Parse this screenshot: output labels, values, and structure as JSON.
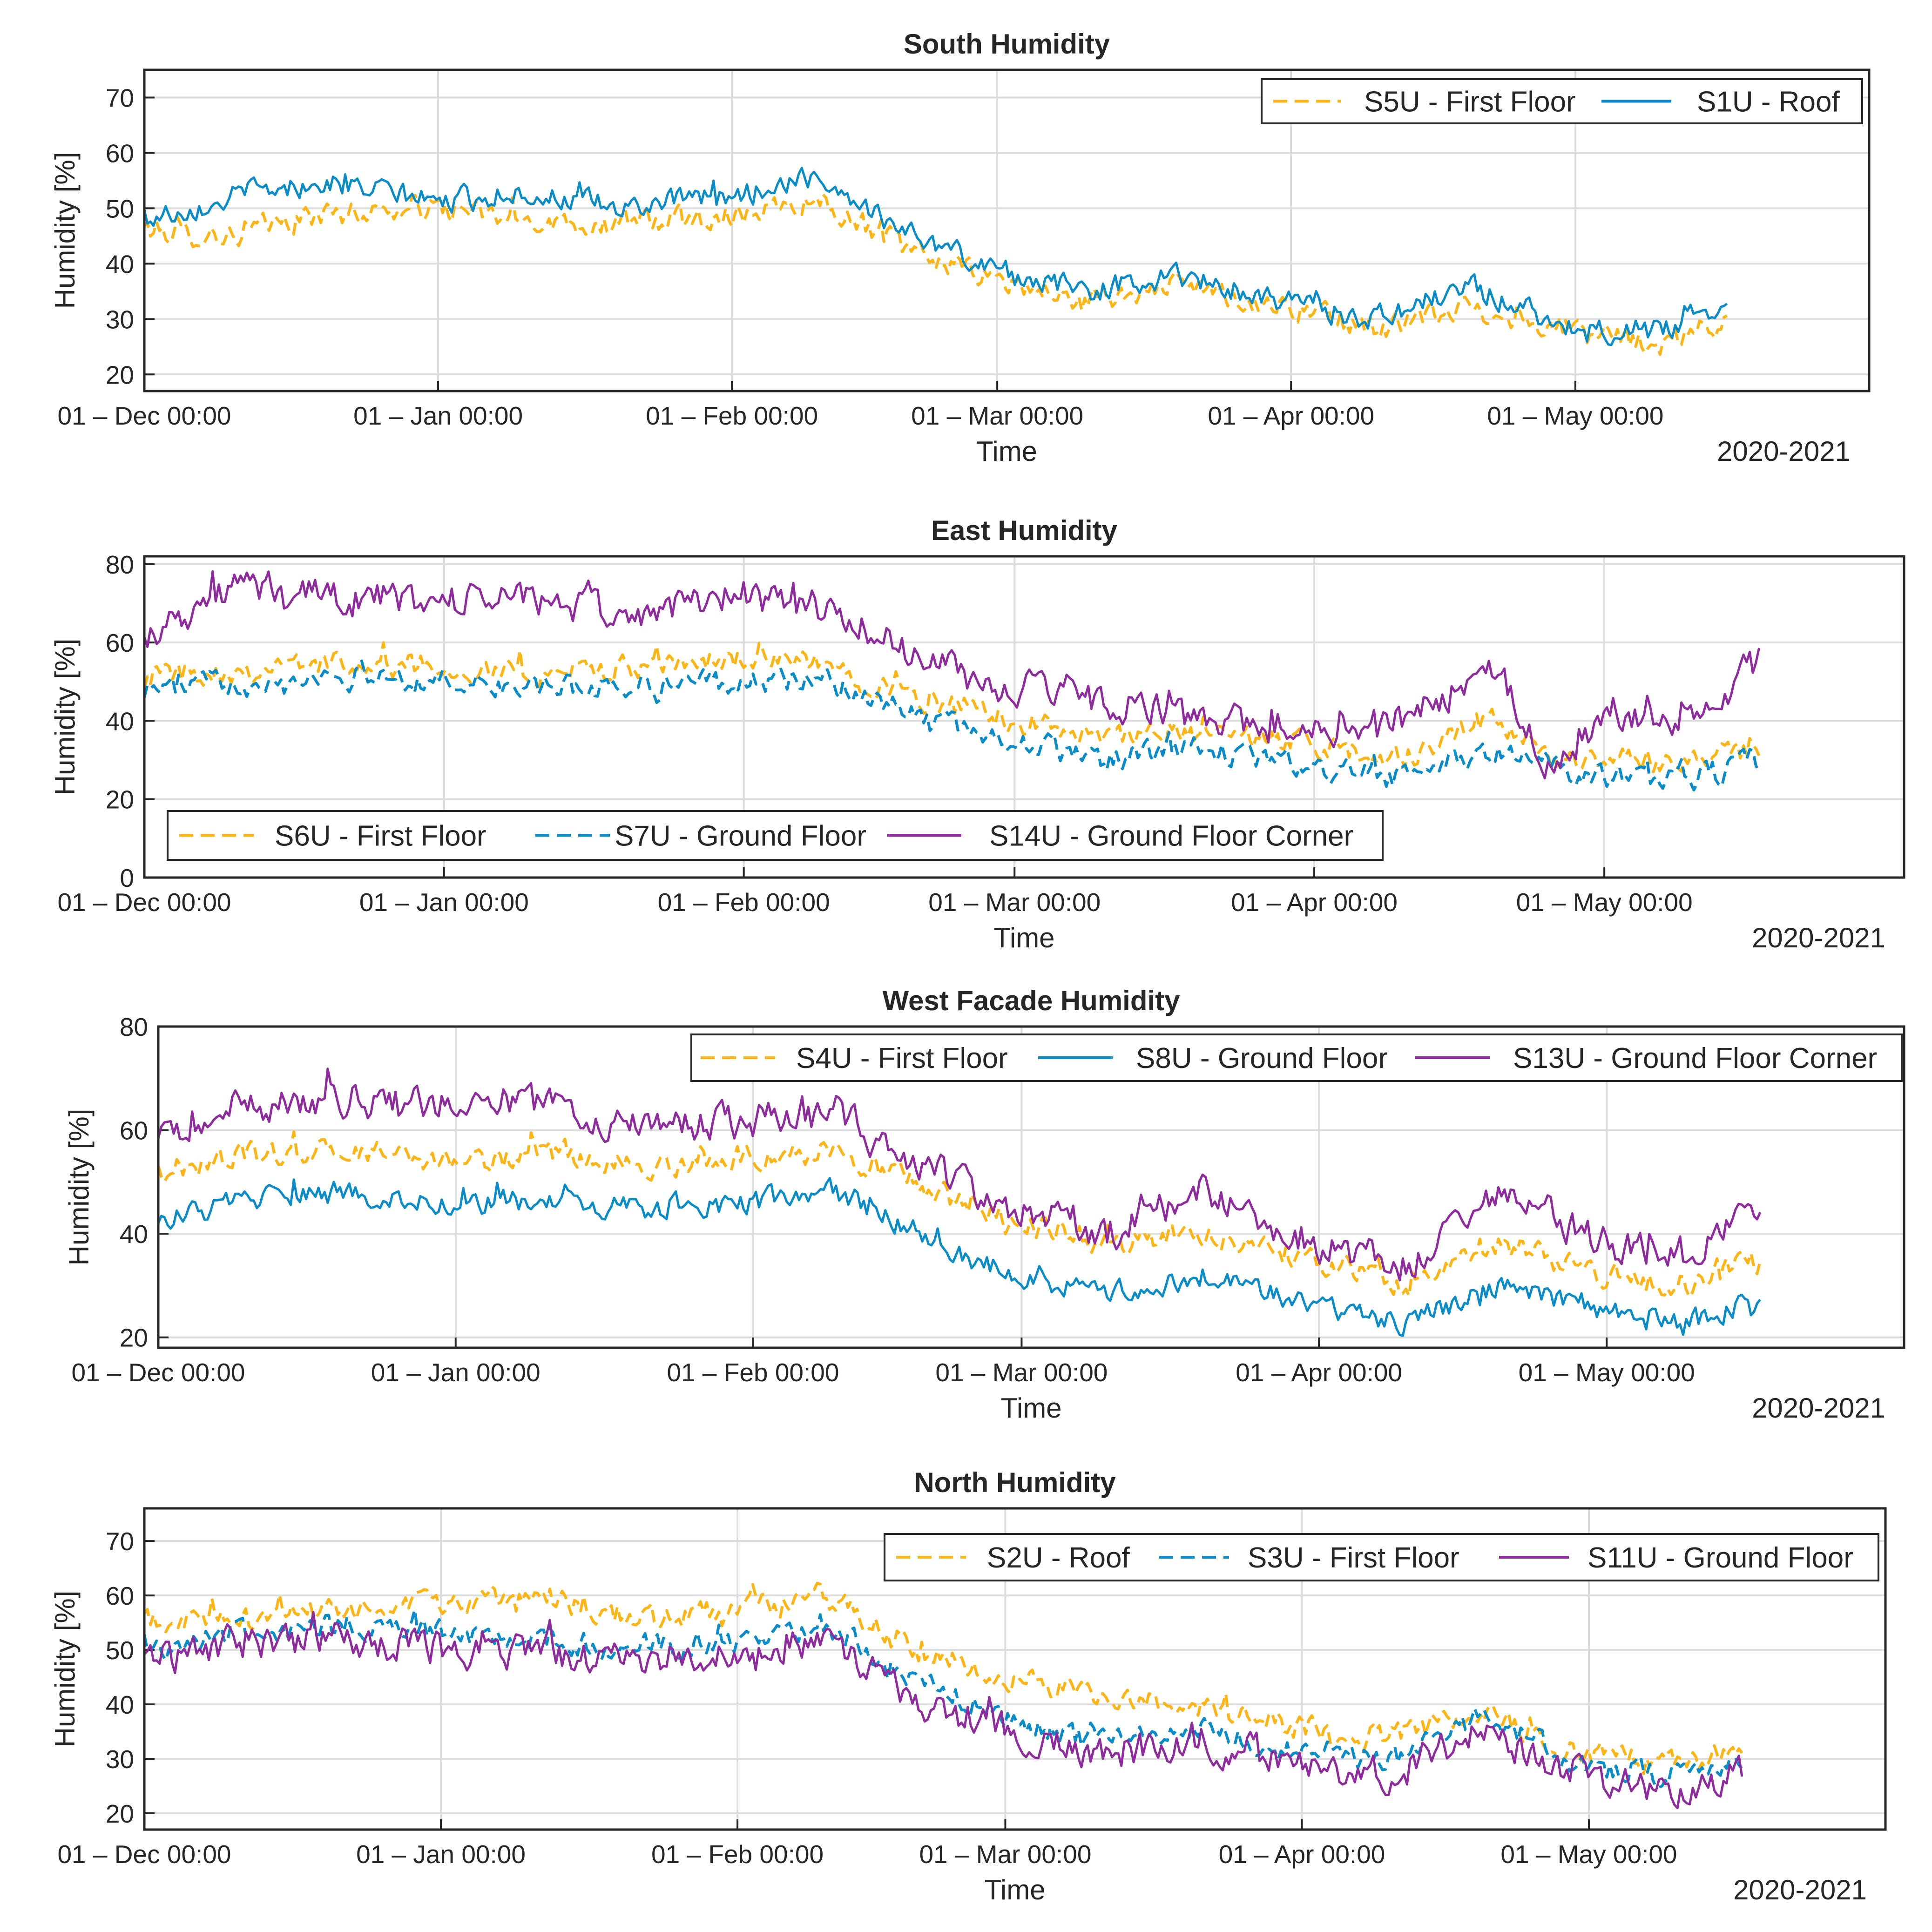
{
  "figure": {
    "year_label": "2020-2021"
  },
  "colors": {
    "yellow": "#FDB515",
    "blue": "#0A8CC8",
    "purple": "#8E2C9E"
  },
  "chart_data": [
    {
      "type": "line",
      "title": "South  Humidity",
      "xlabel": "Time",
      "ylabel": "Humidity [%]",
      "ylim": [
        17,
        75
      ],
      "yticks": [
        20,
        30,
        40,
        50,
        60,
        70
      ],
      "ytick_labels": [
        "20",
        "30",
        "40",
        "50",
        "60",
        "70"
      ],
      "xlim": [
        "2020-12-01",
        "2021-06-01"
      ],
      "xtick_labels": [
        "01 – Dec 00:00",
        "01 – Jan 00:00",
        "01 – Feb 00:00",
        "01 – Mar 00:00",
        "01 – Apr 00:00",
        "01 – May 00:00"
      ],
      "grid": true,
      "legend_placement": "top-right",
      "series": [
        {
          "name": "S5U - First Floor",
          "color": "#FDB515",
          "dash": "dashed",
          "x": [
            "2020-12-01",
            "2020-12-10",
            "2020-12-20",
            "2021-01-01",
            "2021-01-10",
            "2021-01-20",
            "2021-02-01",
            "2021-02-10",
            "2021-02-20",
            "2021-03-01",
            "2021-03-10",
            "2021-03-20",
            "2021-04-01",
            "2021-04-10",
            "2021-04-20",
            "2021-05-01",
            "2021-05-10",
            "2021-05-17"
          ],
          "y": [
            46,
            45,
            49,
            50,
            48,
            47,
            49,
            52,
            42,
            37,
            33,
            36,
            32,
            28,
            32,
            28,
            25,
            30
          ]
        },
        {
          "name": "S1U - Roof",
          "color": "#0A8CC8",
          "dash": "solid",
          "x": [
            "2020-12-01",
            "2020-12-10",
            "2020-12-20",
            "2021-01-01",
            "2021-01-10",
            "2021-01-20",
            "2021-02-01",
            "2021-02-10",
            "2021-02-20",
            "2021-03-01",
            "2021-03-10",
            "2021-03-20",
            "2021-04-01",
            "2021-04-10",
            "2021-04-20",
            "2021-05-01",
            "2021-05-10",
            "2021-05-17"
          ],
          "y": [
            48,
            52,
            55,
            51,
            53,
            50,
            52,
            56,
            45,
            39,
            35,
            38,
            33,
            30,
            36,
            28,
            28,
            33
          ]
        }
      ]
    },
    {
      "type": "line",
      "title": "East Humidity",
      "xlabel": "Time",
      "ylabel": "Humidity [%]",
      "ylim": [
        0,
        82
      ],
      "yticks": [
        0,
        20,
        40,
        60,
        80
      ],
      "ytick_labels": [
        "0",
        "20",
        "40",
        "60",
        "80"
      ],
      "xlim": [
        "2020-12-01",
        "2021-06-01"
      ],
      "xtick_labels": [
        "01 – Dec 00:00",
        "01 – Jan 00:00",
        "01 – Feb 00:00",
        "01 – Mar 00:00",
        "01 – Apr 00:00",
        "01 – May 00:00"
      ],
      "grid": true,
      "legend_placement": "bottom-left",
      "series": [
        {
          "name": "S6U - First Floor",
          "color": "#FDB515",
          "dash": "dashed",
          "x": [
            "2020-12-01",
            "2020-12-10",
            "2020-12-20",
            "2021-01-01",
            "2021-01-10",
            "2021-01-20",
            "2021-02-01",
            "2021-02-10",
            "2021-02-20",
            "2021-03-01",
            "2021-03-10",
            "2021-03-20",
            "2021-04-01",
            "2021-04-10",
            "2021-04-20",
            "2021-04-25",
            "2021-05-01",
            "2021-05-10",
            "2021-05-17"
          ],
          "y": [
            52,
            53,
            55,
            54,
            52,
            53,
            56,
            54,
            45,
            40,
            35,
            37,
            34,
            30,
            40,
            30,
            30,
            30,
            33
          ]
        },
        {
          "name": "S7U - Ground Floor",
          "color": "#0A8CC8",
          "dash": "dashed",
          "x": [
            "2020-12-01",
            "2020-12-10",
            "2020-12-20",
            "2021-01-01",
            "2021-01-10",
            "2021-01-20",
            "2021-02-01",
            "2021-02-10",
            "2021-02-20",
            "2021-03-01",
            "2021-03-10",
            "2021-03-20",
            "2021-04-01",
            "2021-04-10",
            "2021-04-20",
            "2021-04-25",
            "2021-05-01",
            "2021-05-10",
            "2021-05-17"
          ],
          "y": [
            48,
            50,
            52,
            50,
            48,
            49,
            50,
            50,
            40,
            35,
            30,
            33,
            28,
            25,
            33,
            28,
            26,
            25,
            30
          ]
        },
        {
          "name": "S14U - Ground Floor Corner",
          "color": "#8E2C9E",
          "dash": "solid",
          "x": [
            "2020-12-01",
            "2020-12-10",
            "2020-12-20",
            "2021-01-01",
            "2021-01-10",
            "2021-01-20",
            "2021-02-01",
            "2021-02-10",
            "2021-02-20",
            "2021-03-01",
            "2021-03-10",
            "2021-03-20",
            "2021-04-01",
            "2021-04-10",
            "2021-04-20",
            "2021-04-25",
            "2021-05-01",
            "2021-05-10",
            "2021-05-17"
          ],
          "y": [
            62,
            74,
            72,
            70,
            72,
            66,
            73,
            68,
            55,
            48,
            45,
            40,
            38,
            40,
            55,
            27,
            40,
            40,
            55
          ]
        }
      ]
    },
    {
      "type": "line",
      "title": "West Facade Humidity",
      "xlabel": "Time",
      "ylabel": "Humidity [%]",
      "ylim": [
        18,
        80
      ],
      "yticks": [
        20,
        40,
        60,
        80
      ],
      "ytick_labels": [
        "20",
        "40",
        "60",
        "80"
      ],
      "xlim": [
        "2020-12-01",
        "2021-06-01"
      ],
      "xtick_labels": [
        "01 – Dec 00:00",
        "01 – Jan 00:00",
        "01 – Feb 00:00",
        "01 – Mar 00:00",
        "01 – Apr 00:00",
        "01 – May 00:00"
      ],
      "grid": true,
      "legend_placement": "top-right",
      "series": [
        {
          "name": "S4U - First Floor",
          "color": "#FDB515",
          "dash": "dashed",
          "x": [
            "2020-12-01",
            "2020-12-10",
            "2020-12-20",
            "2021-01-01",
            "2021-01-10",
            "2021-01-20",
            "2021-02-01",
            "2021-02-10",
            "2021-02-20",
            "2021-03-01",
            "2021-03-10",
            "2021-03-20",
            "2021-04-01",
            "2021-04-10",
            "2021-04-20",
            "2021-05-01",
            "2021-05-10",
            "2021-05-17"
          ],
          "y": [
            52,
            55,
            56,
            54,
            55,
            53,
            55,
            56,
            48,
            42,
            38,
            40,
            35,
            30,
            38,
            32,
            30,
            35
          ]
        },
        {
          "name": "S8U - Ground Floor",
          "color": "#0A8CC8",
          "dash": "solid",
          "x": [
            "2020-12-01",
            "2020-12-10",
            "2020-12-20",
            "2021-01-01",
            "2021-01-10",
            "2021-01-20",
            "2021-02-01",
            "2021-02-10",
            "2021-02-20",
            "2021-03-01",
            "2021-03-10",
            "2021-03-20",
            "2021-04-01",
            "2021-04-10",
            "2021-04-20",
            "2021-05-01",
            "2021-05-10",
            "2021-05-17"
          ],
          "y": [
            43,
            46,
            48,
            46,
            46,
            45,
            46,
            48,
            38,
            32,
            28,
            32,
            26,
            23,
            30,
            24,
            23,
            27
          ]
        },
        {
          "name": "S13U - Ground Floor Corner",
          "color": "#8E2C9E",
          "dash": "solid",
          "x": [
            "2020-12-01",
            "2020-12-10",
            "2020-12-20",
            "2021-01-01",
            "2021-01-10",
            "2021-01-20",
            "2021-02-01",
            "2021-02-10",
            "2021-02-20",
            "2021-03-01",
            "2021-03-10",
            "2021-03-20",
            "2021-04-01",
            "2021-04-10",
            "2021-04-20",
            "2021-05-01",
            "2021-05-10",
            "2021-05-17"
          ],
          "y": [
            58,
            65,
            66,
            65,
            66,
            60,
            62,
            63,
            52,
            45,
            40,
            48,
            38,
            34,
            48,
            38,
            36,
            45
          ]
        }
      ]
    },
    {
      "type": "line",
      "title": "North Humidity",
      "xlabel": "Time",
      "ylabel": "Humidity [%]",
      "ylim": [
        17,
        76
      ],
      "yticks": [
        20,
        30,
        40,
        50,
        60,
        70
      ],
      "ytick_labels": [
        "20",
        "30",
        "40",
        "50",
        "60",
        "70"
      ],
      "xlim": [
        "2020-12-01",
        "2021-06-01"
      ],
      "xtick_labels": [
        "01 – Dec 00:00",
        "01 – Jan 00:00",
        "01 – Feb 00:00",
        "01 – Mar 00:00",
        "01 – Apr 00:00",
        "01 – May 00:00"
      ],
      "grid": true,
      "legend_placement": "top-right",
      "series": [
        {
          "name": "S2U - Roof",
          "color": "#FDB515",
          "dash": "dashed",
          "x": [
            "2020-12-01",
            "2020-12-10",
            "2020-12-20",
            "2021-01-01",
            "2021-01-10",
            "2021-01-20",
            "2021-02-01",
            "2021-02-10",
            "2021-02-20",
            "2021-03-01",
            "2021-03-10",
            "2021-03-20",
            "2021-04-01",
            "2021-04-10",
            "2021-04-20",
            "2021-05-01",
            "2021-05-10",
            "2021-05-17"
          ],
          "y": [
            55,
            56,
            57,
            58,
            60,
            56,
            57,
            60,
            50,
            45,
            42,
            40,
            36,
            34,
            38,
            30,
            30,
            32
          ]
        },
        {
          "name": "S3U - First Floor",
          "color": "#0A8CC8",
          "dash": "dashed",
          "x": [
            "2020-12-01",
            "2020-12-10",
            "2020-12-20",
            "2021-01-01",
            "2021-01-10",
            "2021-01-20",
            "2021-02-01",
            "2021-02-10",
            "2021-02-20",
            "2021-03-01",
            "2021-03-10",
            "2021-03-20",
            "2021-04-01",
            "2021-04-10",
            "2021-04-20",
            "2021-05-01",
            "2021-05-10",
            "2021-05-17"
          ],
          "y": [
            50,
            53,
            54,
            53,
            52,
            50,
            52,
            55,
            44,
            38,
            33,
            36,
            31,
            30,
            38,
            28,
            27,
            30
          ]
        },
        {
          "name": "S11U - Ground Floor",
          "color": "#8E2C9E",
          "dash": "solid",
          "x": [
            "2020-12-01",
            "2020-12-10",
            "2020-12-20",
            "2021-01-01",
            "2021-01-10",
            "2021-01-20",
            "2021-02-01",
            "2021-02-10",
            "2021-02-20",
            "2021-03-01",
            "2021-03-10",
            "2021-03-20",
            "2021-04-01",
            "2021-04-10",
            "2021-04-20",
            "2021-05-01",
            "2021-05-10",
            "2021-05-17"
          ],
          "y": [
            48,
            51,
            52,
            50,
            50,
            48,
            50,
            52,
            40,
            36,
            30,
            34,
            29,
            27,
            35,
            27,
            24,
            28
          ]
        }
      ]
    }
  ]
}
